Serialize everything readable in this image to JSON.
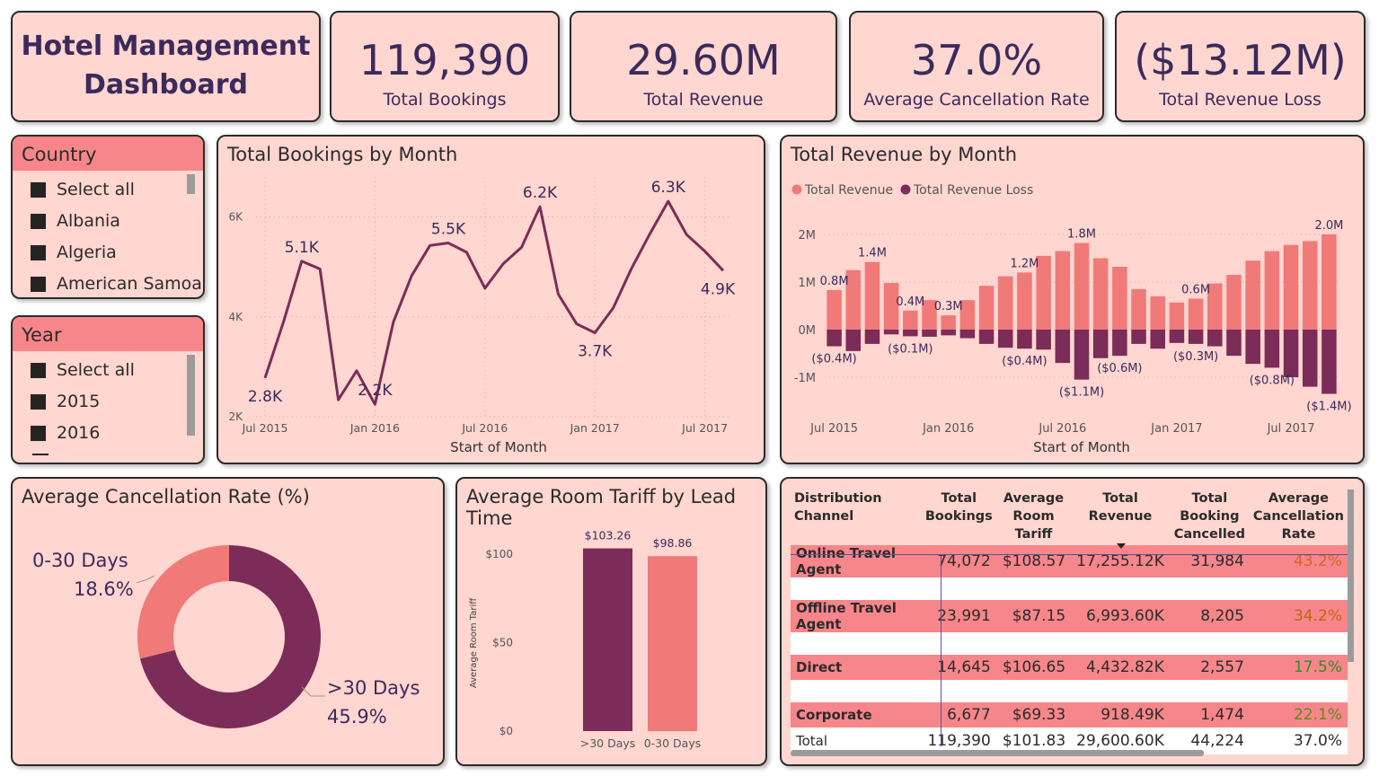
{
  "header": {
    "title_line1": "Hotel Management",
    "title_line2": "Dashboard"
  },
  "kpis": [
    {
      "value": "119,390",
      "label": "Total Bookings"
    },
    {
      "value": "29.60M",
      "label": "Total Revenue"
    },
    {
      "value": "37.0%",
      "label": "Average Cancellation Rate"
    },
    {
      "value": "($13.12M)",
      "label": "Total Revenue Loss"
    }
  ],
  "country_slicer": {
    "title": "Country",
    "items": [
      "Select all",
      "Albania",
      "Algeria",
      "American Samoa"
    ]
  },
  "year_slicer": {
    "title": "Year",
    "items": [
      "Select all",
      "2015",
      "2016"
    ]
  },
  "colors": {
    "accent_dark": "#7b2c58",
    "accent_light": "#f07a78",
    "card_bg": "#ffd6d0",
    "text_dark": "#3b2a5c"
  },
  "chart_data": [
    {
      "type": "line",
      "title": "Total Bookings by Month",
      "xlabel": "Start of Month",
      "x": [
        "Jul 2015",
        "Aug 2015",
        "Sep 2015",
        "Oct 2015",
        "Nov 2015",
        "Dec 2015",
        "Jan 2016",
        "Feb 2016",
        "Mar 2016",
        "Apr 2016",
        "May 2016",
        "Jun 2016",
        "Jul 2016",
        "Aug 2016",
        "Sep 2016",
        "Oct 2016",
        "Nov 2016",
        "Dec 2016",
        "Jan 2017",
        "Feb 2017",
        "Mar 2017",
        "Apr 2017",
        "May 2017",
        "Jun 2017",
        "Jul 2017",
        "Aug 2017"
      ],
      "values": [
        2776,
        3889,
        5114,
        4957,
        2340,
        2920,
        2248,
        3891,
        4824,
        5428,
        5478,
        5292,
        4572,
        5063,
        5394,
        6203,
        4454,
        3860,
        3681,
        4177,
        4970,
        5661,
        6313,
        5647,
        5313,
        4925
      ],
      "xticks": [
        "Jul 2015",
        "Jan 2016",
        "Jul 2016",
        "Jan 2017",
        "Jul 2017"
      ],
      "yticks": [
        "2K",
        "4K",
        "6K"
      ],
      "ylim": [
        2000,
        6800
      ],
      "data_labels": [
        {
          "index": 0,
          "text": "2.8K",
          "pos": "below"
        },
        {
          "index": 2,
          "text": "5.1K",
          "pos": "above"
        },
        {
          "index": 6,
          "text": "2.2K",
          "pos": "above"
        },
        {
          "index": 10,
          "text": "5.5K",
          "pos": "above"
        },
        {
          "index": 15,
          "text": "6.2K",
          "pos": "above"
        },
        {
          "index": 18,
          "text": "3.7K",
          "pos": "below"
        },
        {
          "index": 22,
          "text": "6.3K",
          "pos": "above"
        },
        {
          "index": 25,
          "text": "4.9K",
          "pos": "below"
        }
      ]
    },
    {
      "type": "bar",
      "title": "Total Revenue by Month",
      "xlabel": "Start of Month",
      "legend": "top-left",
      "series": [
        {
          "name": "Total Revenue",
          "color": "#f07a78",
          "values": [
            0.83,
            1.25,
            1.42,
            0.98,
            0.4,
            0.62,
            0.3,
            0.62,
            0.92,
            1.12,
            1.2,
            1.55,
            1.65,
            1.82,
            1.5,
            1.32,
            0.85,
            0.7,
            0.57,
            0.65,
            0.97,
            1.15,
            1.45,
            1.65,
            1.78,
            1.86,
            2.0
          ]
        },
        {
          "name": "Total Revenue Loss",
          "color": "#7b2c58",
          "values": [
            -0.35,
            -0.45,
            -0.3,
            -0.1,
            -0.14,
            -0.15,
            -0.12,
            -0.18,
            -0.3,
            -0.38,
            -0.4,
            -0.42,
            -0.7,
            -1.05,
            -0.6,
            -0.55,
            -0.3,
            -0.4,
            -0.28,
            -0.3,
            -0.35,
            -0.55,
            -0.72,
            -0.8,
            -1.0,
            -1.2,
            -1.35
          ]
        }
      ],
      "xticks": [
        "Jul 2015",
        "Jan 2016",
        "Jul 2016",
        "Jan 2017",
        "Jul 2017"
      ],
      "yticks": [
        "-1M",
        "0M",
        "1M",
        "2M"
      ],
      "ylim": [
        -1.6,
        2.3
      ],
      "data_labels": [
        {
          "series": 0,
          "index": 0,
          "text": "0.8M"
        },
        {
          "series": 0,
          "index": 2,
          "text": "1.4M"
        },
        {
          "series": 0,
          "index": 4,
          "text": "0.4M"
        },
        {
          "series": 0,
          "index": 6,
          "text": "0.3M"
        },
        {
          "series": 0,
          "index": 10,
          "text": "1.2M"
        },
        {
          "series": 0,
          "index": 13,
          "text": "1.8M"
        },
        {
          "series": 0,
          "index": 19,
          "text": "0.6M"
        },
        {
          "series": 0,
          "index": 26,
          "text": "2.0M"
        },
        {
          "series": 1,
          "index": 0,
          "text": "($0.4M)"
        },
        {
          "series": 1,
          "index": 4,
          "text": "($0.1M)"
        },
        {
          "series": 1,
          "index": 10,
          "text": "($0.4M)"
        },
        {
          "series": 1,
          "index": 13,
          "text": "($1.1M)"
        },
        {
          "series": 1,
          "index": 15,
          "text": "($0.6M)"
        },
        {
          "series": 1,
          "index": 19,
          "text": "($0.3M)"
        },
        {
          "series": 1,
          "index": 23,
          "text": "($0.8M)"
        },
        {
          "series": 1,
          "index": 26,
          "text": "($1.4M)"
        }
      ]
    },
    {
      "type": "pie",
      "title": "Average Cancellation Rate (%)",
      "categories": [
        "0-30 Days",
        ">30 Days"
      ],
      "values": [
        18.6,
        45.9
      ],
      "value_labels": [
        "18.6%",
        "45.9%"
      ],
      "colors": [
        "#f07a78",
        "#7b2c58"
      ]
    },
    {
      "type": "bar",
      "title": "Average Room Tariff by Lead Time",
      "ylabel": "Average Room Tariff",
      "categories": [
        ">30 Days",
        "0-30 Days"
      ],
      "values": [
        103.26,
        98.86
      ],
      "value_labels": [
        "$103.26",
        "$98.86"
      ],
      "colors": [
        "#7b2c58",
        "#f07a78"
      ],
      "yticks": [
        "$0",
        "$50",
        "$100"
      ],
      "ylim": [
        0,
        110
      ]
    },
    {
      "type": "table",
      "columns": [
        "Distribution Channel",
        "Total Bookings",
        "Average Room Tariff",
        "Total Revenue",
        "Total Booking Cancelled",
        "Average Cancellation Rate"
      ],
      "rows": [
        [
          "Online Travel Agent",
          "74,072",
          "$108.57",
          "17,255.12K",
          "31,984",
          "43.2%"
        ],
        [
          "Offline Travel Agent",
          "23,991",
          "$87.15",
          "6,993.60K",
          "8,205",
          "34.2%"
        ],
        [
          "Direct",
          "14,645",
          "$106.65",
          "4,432.82K",
          "2,557",
          "17.5%"
        ],
        [
          "Corporate",
          "6,677",
          "$69.33",
          "918.49K",
          "1,474",
          "22.1%"
        ]
      ],
      "rate_colors": [
        "#d9632a",
        "#c0650f",
        "#2f8a2f",
        "#5c8a1f"
      ],
      "total": [
        "Total",
        "119,390",
        "$101.83",
        "29,600.60K",
        "44,224",
        "37.0%"
      ]
    }
  ]
}
